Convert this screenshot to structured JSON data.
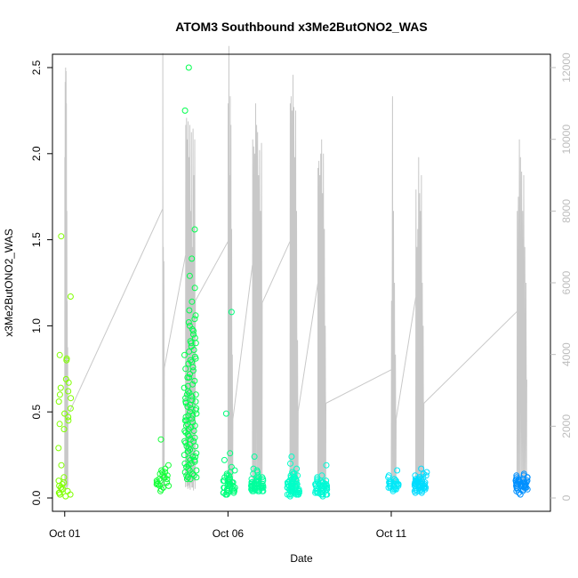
{
  "chart_data": {
    "type": "scatter",
    "title": "ATOM3 Southbound x3Me2ButONO2_WAS",
    "xlabel": "Date",
    "ylabel": "x3Me2ButONO2_WAS",
    "x_axis": {
      "type": "date",
      "range": [
        "2016-09-30T15:00",
        "2016-10-15T21:00"
      ],
      "ticks": [
        {
          "value": "2016-10-01",
          "label": "Oct 01"
        },
        {
          "value": "2016-10-06",
          "label": "Oct 06"
        },
        {
          "value": "2016-10-11",
          "label": "Oct 11"
        }
      ]
    },
    "y_axis_left": {
      "range": [
        0,
        2.5
      ],
      "ticks": [
        0.0,
        0.5,
        1.0,
        1.5,
        2.0,
        2.5
      ],
      "tick_labels": [
        "0.0",
        "0.5",
        "1.0",
        "1.5",
        "2.0",
        "2.5"
      ]
    },
    "y_axis_right": {
      "range": [
        0,
        12000
      ],
      "ticks": [
        0,
        2000,
        4000,
        6000,
        8000,
        10000,
        12000
      ],
      "tick_labels": [
        "0",
        "2000",
        "4000",
        "6000",
        "8000",
        "10000",
        "12000"
      ],
      "color": "#bdbdbd"
    },
    "grid": false,
    "legend": "none",
    "colors": {
      "altitude_line": "#c8c8c8",
      "point_palette_start": "#80ff00",
      "point_palette_end": "#0090ff"
    },
    "point_groups": [
      {
        "day": 1.0,
        "count": 34,
        "values": [
          1.52,
          1.17,
          0.83,
          0.81,
          0.8,
          0.69,
          0.67,
          0.64,
          0.62,
          0.6,
          0.58,
          0.56,
          0.52,
          0.49,
          0.47,
          0.45,
          0.43,
          0.4,
          0.29,
          0.19,
          0.12,
          0.1,
          0.08,
          0.06,
          0.05,
          0.04,
          0.03,
          0.02,
          0.02,
          0.01,
          0.03,
          0.05,
          0.07,
          0.09
        ]
      },
      {
        "day": 4.0,
        "count": 24,
        "values": [
          0.34,
          0.19,
          0.17,
          0.16,
          0.15,
          0.14,
          0.13,
          0.12,
          0.12,
          0.11,
          0.1,
          0.1,
          0.09,
          0.09,
          0.08,
          0.08,
          0.07,
          0.07,
          0.06,
          0.05,
          0.04,
          0.13,
          0.11,
          0.15
        ]
      },
      {
        "day": 4.85,
        "count": 110,
        "values": [
          2.5,
          2.25,
          1.56,
          1.39,
          1.29,
          1.22,
          1.14,
          1.09,
          1.06,
          1.04,
          1.02,
          1.0,
          0.98,
          0.95,
          0.93,
          0.91,
          0.9,
          0.88,
          0.86,
          0.85,
          0.83,
          0.81,
          0.8,
          0.79,
          0.78,
          0.76,
          0.74,
          0.72,
          0.7,
          0.68,
          0.66,
          0.64,
          0.62,
          0.61,
          0.6,
          0.59,
          0.58,
          0.57,
          0.56,
          0.55,
          0.54,
          0.53,
          0.52,
          0.51,
          0.5,
          0.49,
          0.48,
          0.47,
          0.46,
          0.45,
          0.44,
          0.43,
          0.42,
          0.41,
          0.4,
          0.39,
          0.38,
          0.37,
          0.36,
          0.35,
          0.34,
          0.33,
          0.32,
          0.31,
          0.3,
          0.29,
          0.28,
          0.27,
          0.26,
          0.25,
          0.24,
          0.23,
          0.22,
          0.21,
          0.2,
          0.19,
          0.18,
          0.17,
          0.16,
          0.15,
          0.14,
          0.13,
          0.12,
          0.11,
          0.11,
          0.12,
          0.13,
          0.14,
          0.16,
          0.18,
          0.2,
          0.22,
          0.24,
          0.27,
          0.3,
          0.33,
          0.36,
          0.39,
          0.42,
          0.45,
          0.48,
          0.52,
          0.56,
          0.6,
          0.65,
          0.7,
          0.75,
          0.82,
          0.9,
          0.97
        ]
      },
      {
        "day": 6.05,
        "count": 44,
        "values": [
          1.08,
          0.49,
          0.26,
          0.22,
          0.18,
          0.16,
          0.15,
          0.14,
          0.13,
          0.12,
          0.11,
          0.1,
          0.1,
          0.09,
          0.09,
          0.08,
          0.08,
          0.07,
          0.07,
          0.06,
          0.06,
          0.05,
          0.05,
          0.05,
          0.04,
          0.04,
          0.04,
          0.03,
          0.03,
          0.03,
          0.02,
          0.02,
          0.02,
          0.03,
          0.04,
          0.05,
          0.06,
          0.07,
          0.08,
          0.09,
          0.1,
          0.11,
          0.12,
          0.13
        ]
      },
      {
        "day": 6.9,
        "count": 60,
        "values": [
          0.24,
          0.17,
          0.16,
          0.15,
          0.14,
          0.13,
          0.12,
          0.12,
          0.11,
          0.11,
          0.1,
          0.1,
          0.1,
          0.09,
          0.09,
          0.09,
          0.08,
          0.08,
          0.08,
          0.08,
          0.07,
          0.07,
          0.07,
          0.07,
          0.07,
          0.06,
          0.06,
          0.06,
          0.06,
          0.06,
          0.05,
          0.05,
          0.05,
          0.05,
          0.05,
          0.05,
          0.04,
          0.04,
          0.04,
          0.04,
          0.04,
          0.04,
          0.04,
          0.05,
          0.06,
          0.07,
          0.08,
          0.09,
          0.1,
          0.11,
          0.12,
          0.06,
          0.07,
          0.08,
          0.09,
          0.05,
          0.06,
          0.07,
          0.08,
          0.09
        ]
      },
      {
        "day": 8.0,
        "count": 70,
        "values": [
          0.24,
          0.2,
          0.17,
          0.15,
          0.14,
          0.13,
          0.12,
          0.12,
          0.11,
          0.11,
          0.1,
          0.1,
          0.1,
          0.09,
          0.09,
          0.09,
          0.08,
          0.08,
          0.08,
          0.08,
          0.07,
          0.07,
          0.07,
          0.07,
          0.06,
          0.06,
          0.06,
          0.06,
          0.06,
          0.05,
          0.05,
          0.05,
          0.05,
          0.05,
          0.04,
          0.04,
          0.04,
          0.04,
          0.04,
          0.03,
          0.03,
          0.03,
          0.03,
          0.03,
          0.02,
          0.02,
          0.02,
          0.02,
          0.02,
          0.01,
          0.02,
          0.03,
          0.04,
          0.05,
          0.06,
          0.07,
          0.08,
          0.09,
          0.1,
          0.11,
          0.12,
          0.13,
          0.14,
          0.06,
          0.07,
          0.08,
          0.09,
          0.1,
          0.05,
          0.04
        ]
      },
      {
        "day": 8.85,
        "count": 48,
        "values": [
          0.19,
          0.13,
          0.12,
          0.11,
          0.1,
          0.1,
          0.09,
          0.09,
          0.08,
          0.08,
          0.08,
          0.07,
          0.07,
          0.07,
          0.07,
          0.06,
          0.06,
          0.06,
          0.06,
          0.05,
          0.05,
          0.05,
          0.05,
          0.04,
          0.04,
          0.04,
          0.04,
          0.03,
          0.03,
          0.03,
          0.03,
          0.02,
          0.02,
          0.02,
          0.01,
          0.02,
          0.03,
          0.04,
          0.05,
          0.06,
          0.07,
          0.08,
          0.09,
          0.1,
          0.05,
          0.06,
          0.07,
          0.08
        ]
      },
      {
        "day": 11.05,
        "count": 30,
        "values": [
          0.16,
          0.13,
          0.12,
          0.11,
          0.1,
          0.1,
          0.09,
          0.09,
          0.09,
          0.08,
          0.08,
          0.08,
          0.08,
          0.07,
          0.07,
          0.07,
          0.07,
          0.06,
          0.06,
          0.06,
          0.05,
          0.05,
          0.05,
          0.04,
          0.08,
          0.09,
          0.1,
          0.07,
          0.06,
          0.11
        ]
      },
      {
        "day": 11.9,
        "count": 55,
        "values": [
          0.17,
          0.15,
          0.14,
          0.13,
          0.13,
          0.12,
          0.12,
          0.11,
          0.11,
          0.11,
          0.1,
          0.1,
          0.1,
          0.1,
          0.09,
          0.09,
          0.09,
          0.09,
          0.09,
          0.08,
          0.08,
          0.08,
          0.08,
          0.08,
          0.07,
          0.07,
          0.07,
          0.07,
          0.07,
          0.06,
          0.06,
          0.06,
          0.06,
          0.05,
          0.05,
          0.05,
          0.05,
          0.04,
          0.04,
          0.04,
          0.03,
          0.03,
          0.04,
          0.05,
          0.06,
          0.07,
          0.08,
          0.09,
          0.1,
          0.11,
          0.12,
          0.09,
          0.08,
          0.1,
          0.07
        ]
      },
      {
        "day": 15.0,
        "count": 45,
        "values": [
          0.14,
          0.13,
          0.12,
          0.12,
          0.11,
          0.11,
          0.1,
          0.1,
          0.1,
          0.1,
          0.09,
          0.09,
          0.09,
          0.09,
          0.09,
          0.08,
          0.08,
          0.08,
          0.08,
          0.08,
          0.08,
          0.07,
          0.07,
          0.07,
          0.07,
          0.07,
          0.06,
          0.06,
          0.06,
          0.06,
          0.05,
          0.05,
          0.05,
          0.04,
          0.04,
          0.03,
          0.02,
          0.06,
          0.07,
          0.08,
          0.09,
          0.1,
          0.11,
          0.12,
          0.13
        ]
      }
    ],
    "altitude_flights": [
      {
        "start": 1.0,
        "end": 1.1,
        "peaks": [
          9500,
          11600,
          12000,
          11900,
          11000,
          8000,
          5500,
          4200
        ]
      },
      {
        "start": 4.0,
        "end": 4.05,
        "peaks": [
          12400,
          7000,
          6600
        ]
      },
      {
        "start": 4.7,
        "end": 5.0,
        "peaks": [
          10400,
          10600,
          10000,
          10500,
          9500,
          10400,
          8000,
          10200,
          7000,
          10300,
          9000,
          10000
        ]
      },
      {
        "start": 6.0,
        "end": 6.15,
        "peaks": [
          11000,
          12600,
          9000,
          11200,
          10400,
          7500,
          4000
        ]
      },
      {
        "start": 6.75,
        "end": 7.05,
        "peaks": [
          10000,
          9800,
          9600,
          11000,
          10400,
          10200,
          9000,
          9700,
          8000,
          9900
        ]
      },
      {
        "start": 7.9,
        "end": 8.15,
        "peaks": [
          11000,
          11200,
          10800,
          11800,
          10900,
          9500,
          10800,
          8000,
          4400
        ]
      },
      {
        "start": 8.75,
        "end": 9.0,
        "peaks": [
          9200,
          9400,
          9000,
          9600,
          10000,
          8500,
          9600,
          7500,
          4800
        ]
      },
      {
        "start": 11.0,
        "end": 11.15,
        "peaks": [
          5500,
          11200,
          8000,
          6000,
          4000
        ]
      },
      {
        "start": 11.75,
        "end": 12.0,
        "peaks": [
          8600,
          7000,
          7500,
          9500,
          8500,
          8000,
          9000,
          6000,
          4800
        ]
      },
      {
        "start": 14.85,
        "end": 15.15,
        "peaks": [
          8000,
          8400,
          10000,
          9500,
          9100,
          8000,
          9000,
          7000,
          6000
        ]
      }
    ]
  }
}
